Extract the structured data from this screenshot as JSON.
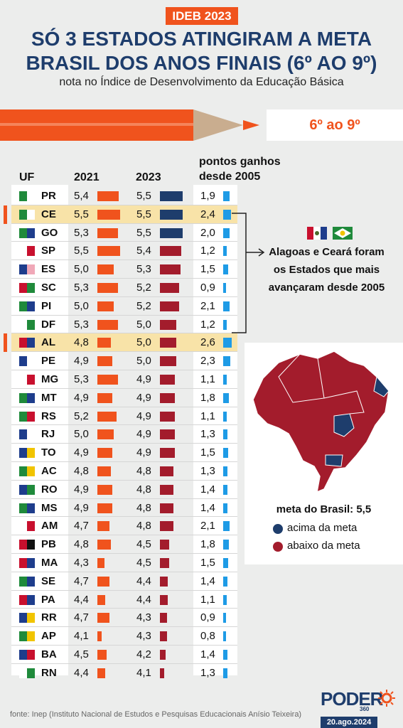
{
  "header": {
    "tag": "IDEB 2023",
    "title_line1": "SÓ 3 ESTADOS ATINGIRAM A META",
    "title_line2": "BRASIL DOS ANOS FINAIS (6º AO 9º)",
    "subtitle": "nota no Índice de Desenvolvimento da Educação Básica",
    "grade_label": "6º ao 9º"
  },
  "colors": {
    "orange": "#f0531d",
    "above_meta": "#1e3d6c",
    "below_meta": "#a31c2c",
    "gain": "#1e9be6",
    "highlight": "#f8e3a8"
  },
  "chart_data": {
    "type": "table",
    "columns": [
      "UF",
      "2021",
      "2023",
      "pontos ganhos desde 2005"
    ],
    "meta_brasil": 5.5,
    "rows": [
      {
        "uf": "PR",
        "v2021": "5,4",
        "v2023": "5,5",
        "gain": "1,9",
        "n2021": 5.4,
        "n2023": 5.5,
        "ngain": 1.9,
        "status": "acima",
        "highlight": false
      },
      {
        "uf": "CE",
        "v2021": "5,5",
        "v2023": "5,5",
        "gain": "2,4",
        "n2021": 5.5,
        "n2023": 5.5,
        "ngain": 2.4,
        "status": "acima",
        "highlight": true
      },
      {
        "uf": "GO",
        "v2021": "5,3",
        "v2023": "5,5",
        "gain": "2,0",
        "n2021": 5.3,
        "n2023": 5.5,
        "ngain": 2.0,
        "status": "acima",
        "highlight": false
      },
      {
        "uf": "SP",
        "v2021": "5,5",
        "v2023": "5,4",
        "gain": "1,2",
        "n2021": 5.5,
        "n2023": 5.4,
        "ngain": 1.2,
        "status": "abaixo",
        "highlight": false
      },
      {
        "uf": "ES",
        "v2021": "5,0",
        "v2023": "5,3",
        "gain": "1,5",
        "n2021": 5.0,
        "n2023": 5.3,
        "ngain": 1.5,
        "status": "abaixo",
        "highlight": false
      },
      {
        "uf": "SC",
        "v2021": "5,3",
        "v2023": "5,2",
        "gain": "0,9",
        "n2021": 5.3,
        "n2023": 5.2,
        "ngain": 0.9,
        "status": "abaixo",
        "highlight": false
      },
      {
        "uf": "PI",
        "v2021": "5,0",
        "v2023": "5,2",
        "gain": "2,1",
        "n2021": 5.0,
        "n2023": 5.2,
        "ngain": 2.1,
        "status": "abaixo",
        "highlight": false
      },
      {
        "uf": "DF",
        "v2021": "5,3",
        "v2023": "5,0",
        "gain": "1,2",
        "n2021": 5.3,
        "n2023": 5.0,
        "ngain": 1.2,
        "status": "abaixo",
        "highlight": false
      },
      {
        "uf": "AL",
        "v2021": "4,8",
        "v2023": "5,0",
        "gain": "2,6",
        "n2021": 4.8,
        "n2023": 5.0,
        "ngain": 2.6,
        "status": "abaixo",
        "highlight": true
      },
      {
        "uf": "PE",
        "v2021": "4,9",
        "v2023": "5,0",
        "gain": "2,3",
        "n2021": 4.9,
        "n2023": 5.0,
        "ngain": 2.3,
        "status": "abaixo",
        "highlight": false
      },
      {
        "uf": "MG",
        "v2021": "5,3",
        "v2023": "4,9",
        "gain": "1,1",
        "n2021": 5.3,
        "n2023": 4.9,
        "ngain": 1.1,
        "status": "abaixo",
        "highlight": false
      },
      {
        "uf": "MT",
        "v2021": "4,9",
        "v2023": "4,9",
        "gain": "1,8",
        "n2021": 4.9,
        "n2023": 4.9,
        "ngain": 1.8,
        "status": "abaixo",
        "highlight": false
      },
      {
        "uf": "RS",
        "v2021": "5,2",
        "v2023": "4,9",
        "gain": "1,1",
        "n2021": 5.2,
        "n2023": 4.9,
        "ngain": 1.1,
        "status": "abaixo",
        "highlight": false
      },
      {
        "uf": "RJ",
        "v2021": "5,0",
        "v2023": "4,9",
        "gain": "1,3",
        "n2021": 5.0,
        "n2023": 4.9,
        "ngain": 1.3,
        "status": "abaixo",
        "highlight": false
      },
      {
        "uf": "TO",
        "v2021": "4,9",
        "v2023": "4,9",
        "gain": "1,5",
        "n2021": 4.9,
        "n2023": 4.9,
        "ngain": 1.5,
        "status": "abaixo",
        "highlight": false
      },
      {
        "uf": "AC",
        "v2021": "4,8",
        "v2023": "4,8",
        "gain": "1,3",
        "n2021": 4.8,
        "n2023": 4.8,
        "ngain": 1.3,
        "status": "abaixo",
        "highlight": false
      },
      {
        "uf": "RO",
        "v2021": "4,9",
        "v2023": "4,8",
        "gain": "1,4",
        "n2021": 4.9,
        "n2023": 4.8,
        "ngain": 1.4,
        "status": "abaixo",
        "highlight": false
      },
      {
        "uf": "MS",
        "v2021": "4,9",
        "v2023": "4,8",
        "gain": "1,4",
        "n2021": 4.9,
        "n2023": 4.8,
        "ngain": 1.4,
        "status": "abaixo",
        "highlight": false
      },
      {
        "uf": "AM",
        "v2021": "4,7",
        "v2023": "4,8",
        "gain": "2,1",
        "n2021": 4.7,
        "n2023": 4.8,
        "ngain": 2.1,
        "status": "abaixo",
        "highlight": false
      },
      {
        "uf": "PB",
        "v2021": "4,8",
        "v2023": "4,5",
        "gain": "1,8",
        "n2021": 4.8,
        "n2023": 4.5,
        "ngain": 1.8,
        "status": "abaixo",
        "highlight": false
      },
      {
        "uf": "MA",
        "v2021": "4,3",
        "v2023": "4,5",
        "gain": "1,5",
        "n2021": 4.3,
        "n2023": 4.5,
        "ngain": 1.5,
        "status": "abaixo",
        "highlight": false
      },
      {
        "uf": "SE",
        "v2021": "4,7",
        "v2023": "4,4",
        "gain": "1,4",
        "n2021": 4.7,
        "n2023": 4.4,
        "ngain": 1.4,
        "status": "abaixo",
        "highlight": false
      },
      {
        "uf": "PA",
        "v2021": "4,4",
        "v2023": "4,4",
        "gain": "1,1",
        "n2021": 4.4,
        "n2023": 4.4,
        "ngain": 1.1,
        "status": "abaixo",
        "highlight": false
      },
      {
        "uf": "RR",
        "v2021": "4,7",
        "v2023": "4,3",
        "gain": "0,9",
        "n2021": 4.7,
        "n2023": 4.3,
        "ngain": 0.9,
        "status": "abaixo",
        "highlight": false
      },
      {
        "uf": "AP",
        "v2021": "4,1",
        "v2023": "4,3",
        "gain": "0,8",
        "n2021": 4.1,
        "n2023": 4.3,
        "ngain": 0.8,
        "status": "abaixo",
        "highlight": false
      },
      {
        "uf": "BA",
        "v2021": "4,5",
        "v2023": "4,2",
        "gain": "1,4",
        "n2021": 4.5,
        "n2023": 4.2,
        "ngain": 1.4,
        "status": "abaixo",
        "highlight": false
      },
      {
        "uf": "RN",
        "v2021": "4,4",
        "v2023": "4,1",
        "gain": "1,3",
        "n2021": 4.4,
        "n2023": 4.1,
        "ngain": 1.3,
        "status": "abaixo",
        "highlight": false
      }
    ]
  },
  "table_headers": {
    "uf": "UF",
    "y2021": "2021",
    "y2023": "2023",
    "gain_line1": "pontos ganhos",
    "gain_line2": "desde 2005"
  },
  "annotation": {
    "line1": "Alagoas e Ceará foram",
    "line2": "os Estados que mais",
    "line3": "avançaram desde 2005"
  },
  "legend": {
    "title": "meta do Brasil: 5,5",
    "above": "acima da meta",
    "below": "abaixo da meta"
  },
  "footer": {
    "source": "fonte: Inep (Instituto Nacional de Estudos e Pesquisas Educacionais Anísio Teixeira)",
    "logo": "PODER",
    "logo_sub": "360",
    "date": "20.ago.2024"
  }
}
